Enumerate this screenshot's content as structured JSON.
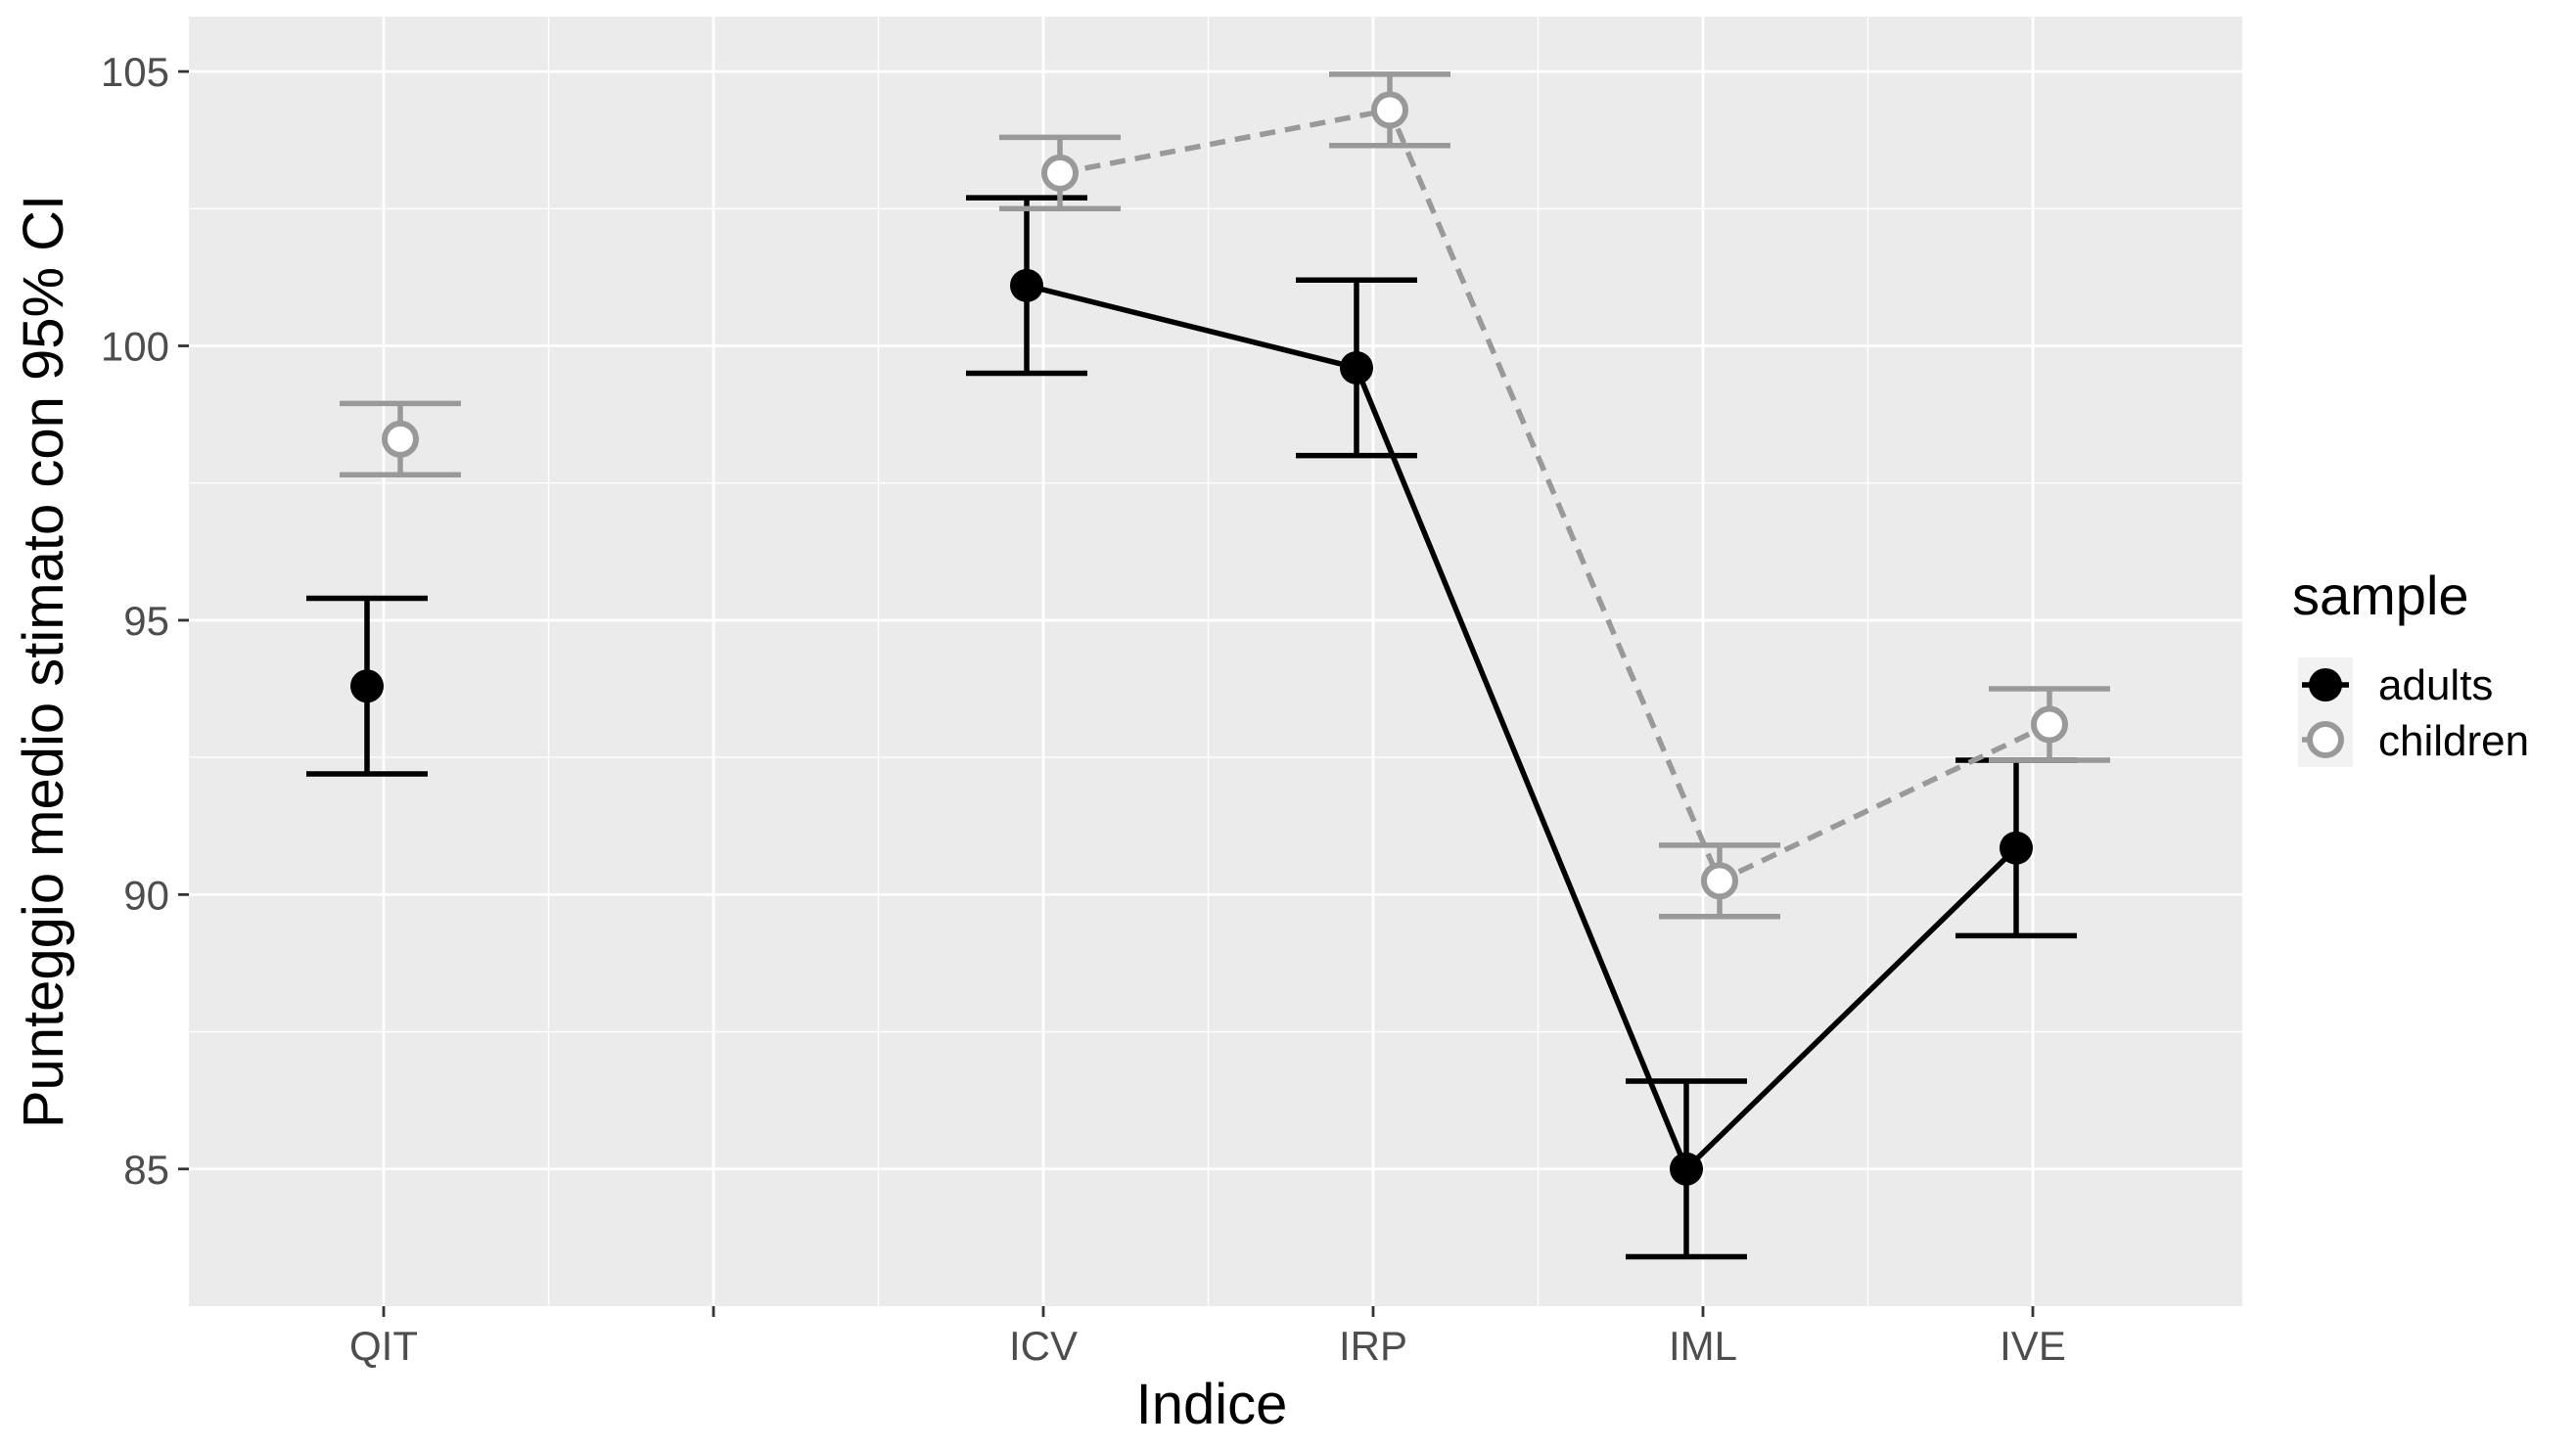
{
  "chart_data": {
    "type": "line",
    "xlabel": "Indice",
    "ylabel": "Punteggio medio stimato con 95% CI",
    "categories": [
      "QIT",
      "",
      "ICV",
      "IRP",
      "IML",
      "IVE"
    ],
    "ylim": [
      82.5,
      106
    ],
    "yticks": [
      85,
      90,
      95,
      100,
      105
    ],
    "grid": true,
    "background": "#ebebeb",
    "legend": {
      "title": "sample",
      "position": "right"
    },
    "series": [
      {
        "name": "adults",
        "color": "#000000",
        "marker": "filled-circle",
        "line_style": "solid",
        "points": [
          {
            "x": "QIT",
            "y": 93.8,
            "lower": 92.2,
            "upper": 95.4
          },
          {
            "x": "ICV",
            "y": 101.1,
            "lower": 99.5,
            "upper": 102.7
          },
          {
            "x": "IRP",
            "y": 99.6,
            "lower": 98.0,
            "upper": 101.2
          },
          {
            "x": "IML",
            "y": 85.0,
            "lower": 83.4,
            "upper": 86.6
          },
          {
            "x": "IVE",
            "y": 90.85,
            "lower": 89.25,
            "upper": 92.45
          }
        ],
        "connected": [
          "ICV",
          "IRP",
          "IML",
          "IVE"
        ]
      },
      {
        "name": "children",
        "color": "#999999",
        "marker": "open-circle",
        "line_style": "dashed",
        "points": [
          {
            "x": "QIT",
            "y": 98.3,
            "lower": 97.65,
            "upper": 98.95
          },
          {
            "x": "ICV",
            "y": 103.15,
            "lower": 102.5,
            "upper": 103.8
          },
          {
            "x": "IRP",
            "y": 104.3,
            "lower": 103.65,
            "upper": 104.95
          },
          {
            "x": "IML",
            "y": 90.25,
            "lower": 89.6,
            "upper": 90.9
          },
          {
            "x": "IVE",
            "y": 93.1,
            "lower": 92.45,
            "upper": 93.75
          }
        ],
        "connected": [
          "ICV",
          "IRP",
          "IML",
          "IVE"
        ]
      }
    ]
  }
}
